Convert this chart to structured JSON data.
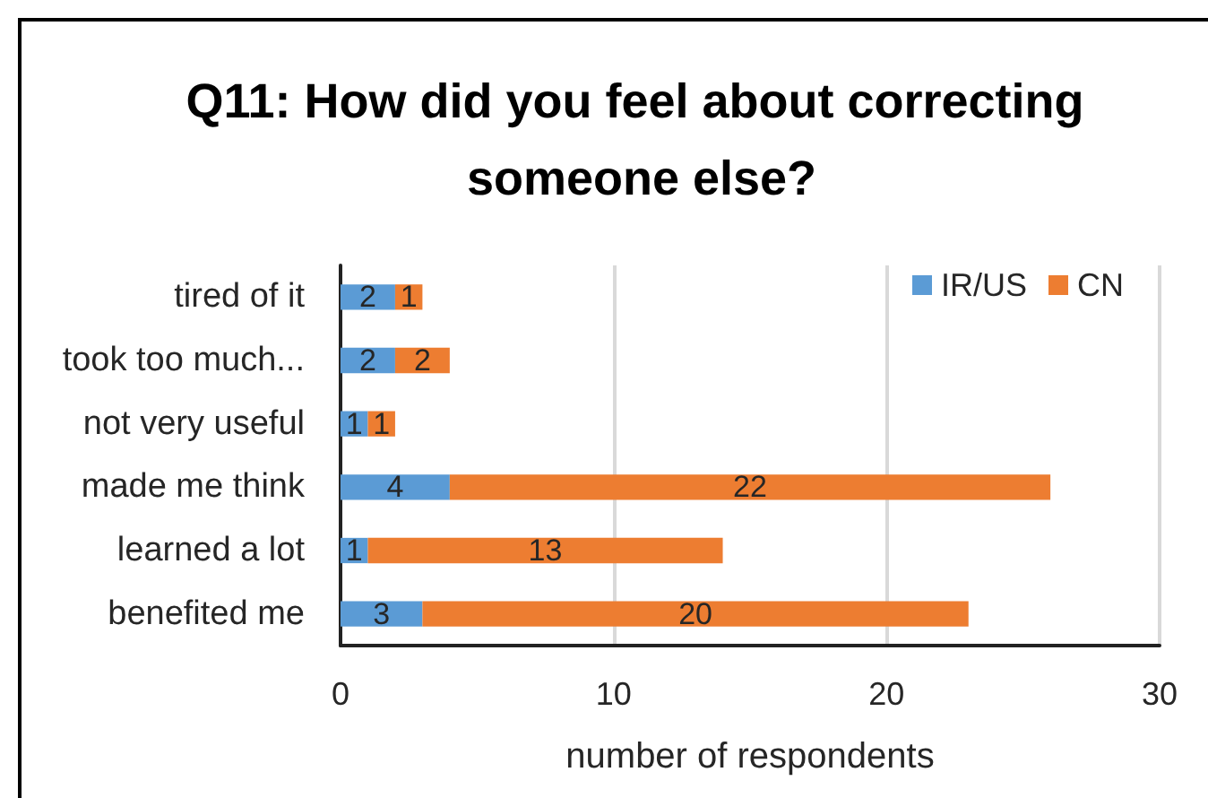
{
  "chart_data": {
    "type": "bar",
    "orientation": "horizontal",
    "stacked": true,
    "title": "Q11: How did you feel about correcting someone else?",
    "xlabel": "number of respondents",
    "categories": [
      "tired of it",
      "took too much...",
      "not very useful",
      "made me think",
      "learned a lot",
      "benefited me"
    ],
    "series": [
      {
        "name": "IR/US",
        "color": "#5b9bd5",
        "values": [
          2,
          2,
          1,
          4,
          1,
          3
        ]
      },
      {
        "name": "CN",
        "color": "#ed7d31",
        "values": [
          1,
          2,
          1,
          22,
          13,
          20
        ]
      }
    ],
    "xlim": [
      0,
      30
    ],
    "xticks": [
      0,
      10,
      20,
      30
    ],
    "grid": "x",
    "legend": "top right",
    "data_labels": true
  }
}
